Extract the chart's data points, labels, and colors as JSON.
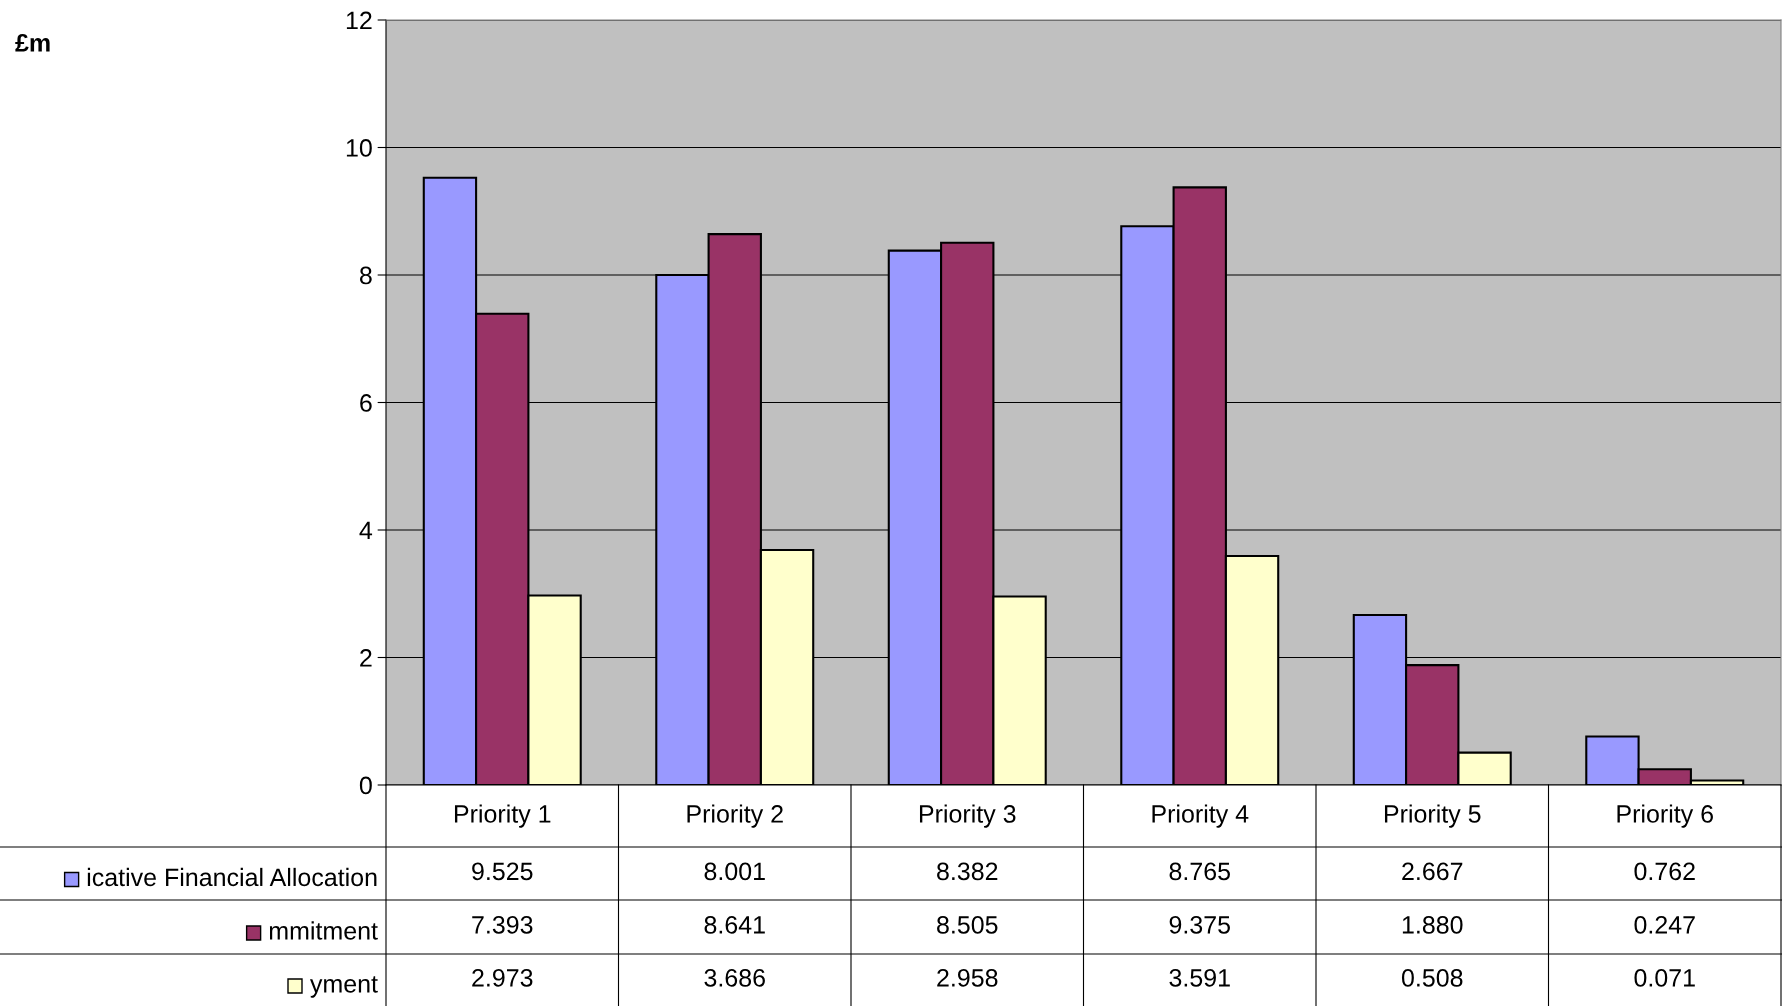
{
  "chart_data": {
    "type": "bar",
    "annotations": [
      "£m"
    ],
    "categories": [
      "Priority 1",
      "Priority 2",
      "Priority 3",
      "Priority 4",
      "Priority 5",
      "Priority 6"
    ],
    "series": [
      {
        "name": "icative Financial Allocation",
        "color": "#9999ff",
        "values": [
          9.525,
          8.001,
          8.382,
          8.765,
          2.667,
          0.762
        ],
        "value_labels": [
          "9.525",
          "8.001",
          "8.382",
          "8.765",
          "2.667",
          "0.762"
        ]
      },
      {
        "name": "mmitment",
        "color": "#993366",
        "values": [
          7.393,
          8.641,
          8.505,
          9.375,
          1.88,
          0.247
        ],
        "value_labels": [
          "7.393",
          "8.641",
          "8.505",
          "9.375",
          "1.880",
          "0.247"
        ]
      },
      {
        "name": "yment",
        "color": "#ffffcc",
        "values": [
          2.973,
          3.686,
          2.958,
          3.591,
          0.508,
          0.071
        ],
        "value_labels": [
          "2.973",
          "3.686",
          "2.958",
          "3.591",
          "0.508",
          "0.071"
        ]
      }
    ],
    "ylim": [
      0,
      12
    ],
    "yticks": [
      0,
      2,
      4,
      6,
      8,
      10,
      12
    ],
    "grid": "y",
    "legend": "bottom"
  }
}
